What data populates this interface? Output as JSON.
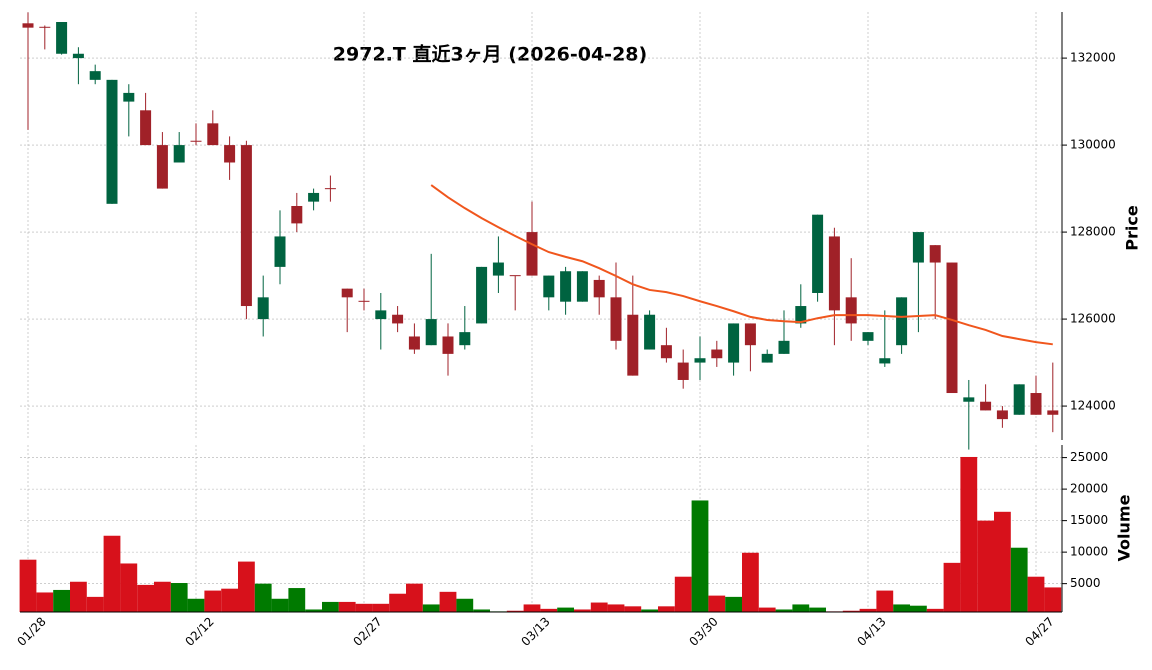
{
  "chart_data": {
    "type": "candlestick",
    "title": "2972.T  直近3ヶ月  (2026-04-28)",
    "categories": [
      "01/28",
      null,
      null,
      null,
      null,
      null,
      null,
      null,
      null,
      null,
      "02/12",
      null,
      null,
      null,
      null,
      null,
      null,
      null,
      null,
      null,
      "02/27",
      null,
      null,
      null,
      null,
      null,
      null,
      null,
      null,
      null,
      "03/13",
      null,
      null,
      null,
      null,
      null,
      null,
      null,
      null,
      null,
      "03/30",
      null,
      null,
      null,
      null,
      null,
      null,
      null,
      null,
      null,
      "04/13",
      null,
      null,
      null,
      null,
      null,
      null,
      null,
      null,
      null,
      "04/27",
      null
    ],
    "open": [
      132800,
      132720,
      132100,
      132000,
      131500,
      128650,
      131000,
      130800,
      130000,
      129600,
      130100,
      130500,
      130000,
      130000,
      126000,
      127200,
      128600,
      128700,
      129010,
      126700,
      126420,
      126000,
      126100,
      125600,
      125400,
      125600,
      125400,
      125900,
      127000,
      127010,
      128000,
      126500,
      126400,
      126400,
      126900,
      126500,
      126100,
      125300,
      125400,
      125000,
      125000,
      125300,
      125000,
      125900,
      125000,
      125200,
      125900,
      126600,
      127900,
      126500,
      125500,
      124980,
      125400,
      127300,
      127700,
      127300,
      124100,
      124100,
      123900,
      123800,
      124300,
      123900
    ],
    "high": [
      133050,
      132750,
      132830,
      132250,
      131850,
      131500,
      131400,
      131200,
      130300,
      130300,
      130500,
      130800,
      130200,
      130100,
      127000,
      128500,
      128900,
      129000,
      129300,
      126700,
      126700,
      126600,
      126300,
      125900,
      127500,
      125900,
      126300,
      127200,
      127900,
      127000,
      128700,
      127000,
      127200,
      127100,
      127000,
      127300,
      127000,
      126200,
      125800,
      125300,
      125600,
      125500,
      125900,
      125900,
      125300,
      126200,
      126800,
      128400,
      128100,
      127400,
      125700,
      126200,
      126500,
      128000,
      127700,
      127300,
      124600,
      124500,
      124000,
      124500,
      124700,
      125000
    ],
    "low": [
      130350,
      132200,
      132080,
      131400,
      131400,
      128650,
      130200,
      130000,
      129000,
      129600,
      130000,
      130000,
      129200,
      126000,
      125600,
      126800,
      128000,
      128500,
      128700,
      125700,
      126200,
      125300,
      125700,
      125200,
      125400,
      124700,
      125300,
      125900,
      126600,
      126200,
      127000,
      126200,
      126100,
      126400,
      126100,
      125300,
      124700,
      125300,
      125000,
      124400,
      124600,
      124900,
      124700,
      124800,
      125000,
      125200,
      125800,
      126400,
      125400,
      125500,
      125400,
      124900,
      125200,
      125700,
      126000,
      124300,
      123000,
      123900,
      123500,
      123800,
      123800,
      123400
    ],
    "close": [
      132700,
      132700,
      132830,
      132100,
      131700,
      131500,
      131200,
      130000,
      129000,
      130000,
      130080,
      130000,
      129600,
      126300,
      126500,
      127900,
      128200,
      128900,
      128990,
      126500,
      126400,
      126200,
      125900,
      125300,
      126000,
      125200,
      125700,
      127200,
      127300,
      126990,
      127000,
      127000,
      127100,
      127100,
      126500,
      125500,
      124700,
      126100,
      125100,
      124600,
      125100,
      125100,
      125900,
      125400,
      125200,
      125500,
      126300,
      128400,
      126200,
      125900,
      125700,
      125100,
      126500,
      128000,
      127300,
      124300,
      124200,
      123900,
      123700,
      124500,
      123800,
      123800
    ],
    "up_color": "#006340",
    "down_color": "#a02128",
    "ylim": [
      123220,
      133060
    ],
    "yticks": [
      124000,
      126000,
      128000,
      130000,
      132000
    ],
    "ylabel": "Price",
    "grid": true,
    "ma": {
      "color": "#f0561d",
      "values": [
        null,
        null,
        null,
        null,
        null,
        null,
        null,
        null,
        null,
        null,
        null,
        null,
        null,
        null,
        null,
        null,
        null,
        null,
        null,
        null,
        null,
        null,
        null,
        null,
        129080,
        128800,
        128550,
        128320,
        128110,
        127910,
        127720,
        127540,
        127430,
        127330,
        127170,
        126990,
        126800,
        126670,
        126620,
        126530,
        126410,
        126300,
        126180,
        126050,
        125980,
        125950,
        125930,
        126020,
        126090,
        126090,
        126090,
        126070,
        126050,
        126070,
        126090,
        125980,
        125860,
        125750,
        125610,
        125540,
        125470,
        125420
      ]
    },
    "volume": {
      "type": "bar",
      "values": [
        8800,
        3600,
        4000,
        5300,
        2900,
        12600,
        8200,
        4800,
        5300,
        5100,
        2600,
        3900,
        4200,
        8500,
        5000,
        2600,
        4300,
        900,
        2100,
        2100,
        1800,
        1800,
        3400,
        5000,
        1700,
        3700,
        2600,
        900,
        600,
        700,
        1700,
        1000,
        1200,
        900,
        2000,
        1700,
        1400,
        900,
        1400,
        6100,
        18200,
        3100,
        2900,
        9900,
        1200,
        900,
        1700,
        1200,
        600,
        700,
        1000,
        3900,
        1700,
        1500,
        1000,
        8300,
        25100,
        15000,
        16400,
        10700,
        6100,
        4400
      ],
      "colors": [
        "#d7111b",
        "#d7111b",
        "#007a00",
        "#d7111b",
        "#d7111b",
        "#d7111b",
        "#d7111b",
        "#d7111b",
        "#d7111b",
        "#007a00",
        "#007a00",
        "#d7111b",
        "#d7111b",
        "#d7111b",
        "#007a00",
        "#007a00",
        "#007a00",
        "#007a00",
        "#007a00",
        "#d7111b",
        "#d7111b",
        "#d7111b",
        "#d7111b",
        "#d7111b",
        "#007a00",
        "#d7111b",
        "#007a00",
        "#007a00",
        "#007a00",
        "#d7111b",
        "#d7111b",
        "#d7111b",
        "#007a00",
        "#d7111b",
        "#d7111b",
        "#d7111b",
        "#d7111b",
        "#007a00",
        "#d7111b",
        "#d7111b",
        "#007a00",
        "#d7111b",
        "#007a00",
        "#d7111b",
        "#d7111b",
        "#007a00",
        "#007a00",
        "#007a00",
        "#d7111b",
        "#d7111b",
        "#d7111b",
        "#d7111b",
        "#007a00",
        "#007a00",
        "#d7111b",
        "#d7111b",
        "#d7111b",
        "#d7111b",
        "#d7111b",
        "#007a00",
        "#d7111b",
        "#d7111b"
      ],
      "ylim": [
        500,
        27000
      ],
      "yticks": [
        5000,
        10000,
        15000,
        20000,
        25000
      ],
      "ylabel": "Volume"
    }
  }
}
